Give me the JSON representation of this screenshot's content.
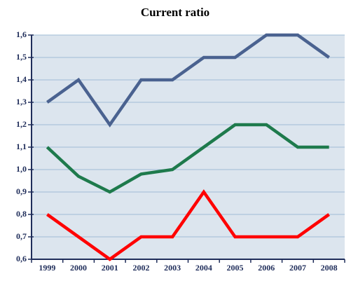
{
  "chart_data": {
    "type": "line",
    "title": "Current ratio",
    "categories": [
      "1999",
      "2000",
      "2001",
      "2002",
      "2003",
      "2004",
      "2005",
      "2006",
      "2007",
      "2008"
    ],
    "series": [
      {
        "color": "#4a6290",
        "values": [
          1.3,
          1.4,
          1.2,
          1.4,
          1.4,
          1.5,
          1.5,
          1.6,
          1.6,
          1.5
        ]
      },
      {
        "color": "#1e7a4c",
        "values": [
          1.1,
          0.97,
          0.9,
          0.98,
          1.0,
          1.1,
          1.2,
          1.2,
          1.1,
          1.1
        ]
      },
      {
        "color": "#ff0000",
        "values": [
          0.8,
          0.7,
          0.6,
          0.7,
          0.7,
          0.9,
          0.7,
          0.7,
          0.7,
          0.8
        ]
      }
    ],
    "ylim": [
      0.6,
      1.6
    ],
    "yticks": [
      {
        "value": 0.6,
        "label": "0,6"
      },
      {
        "value": 0.7,
        "label": "0,7"
      },
      {
        "value": 0.8,
        "label": "0,8"
      },
      {
        "value": 0.9,
        "label": "0,9"
      },
      {
        "value": 1.0,
        "label": "1,0"
      },
      {
        "value": 1.1,
        "label": "1,1"
      },
      {
        "value": 1.2,
        "label": "1,2"
      },
      {
        "value": 1.3,
        "label": "1,3"
      },
      {
        "value": 1.4,
        "label": "1,4"
      },
      {
        "value": 1.5,
        "label": "1,5"
      },
      {
        "value": 1.6,
        "label": "1,6"
      }
    ],
    "grid": true
  }
}
